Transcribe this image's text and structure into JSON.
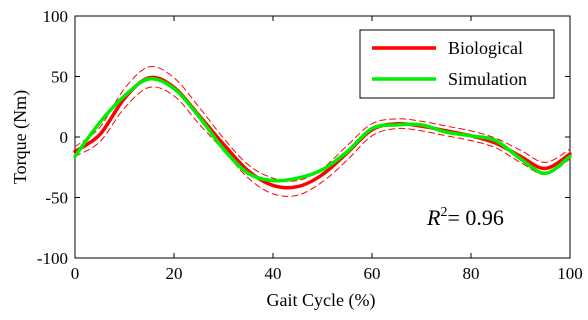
{
  "chart_data": {
    "type": "line",
    "xlabel": "Gait Cycle (%)",
    "ylabel": "Torque (Nm)",
    "xlim": [
      0,
      100
    ],
    "ylim": [
      -100,
      100
    ],
    "xticks": [
      0,
      20,
      40,
      60,
      80,
      100
    ],
    "yticks": [
      -100,
      -50,
      0,
      50,
      100
    ],
    "xtick_labels": [
      "0",
      "20",
      "40",
      "60",
      "80",
      "100"
    ],
    "ytick_labels": [
      "-100",
      "-50",
      "0",
      "50",
      "100"
    ],
    "grid": false,
    "legend_position": "top-right",
    "annotation": {
      "prefix": "R",
      "superscript": "2",
      "suffix": "= 0.96"
    },
    "series": [
      {
        "name": "Biological",
        "color": "#ff0000",
        "x": [
          0,
          5,
          10,
          15,
          20,
          25,
          30,
          35,
          40,
          45,
          50,
          55,
          60,
          65,
          70,
          75,
          80,
          85,
          90,
          95,
          100
        ],
        "y": [
          -12,
          2,
          32,
          49,
          41,
          18,
          -6,
          -28,
          -40,
          -41,
          -31,
          -13,
          6,
          11,
          9,
          5,
          1,
          -5,
          -16,
          -26,
          -14
        ]
      },
      {
        "name": "Simulation",
        "color": "#00ee00",
        "x": [
          0,
          5,
          10,
          15,
          20,
          25,
          30,
          35,
          40,
          45,
          50,
          55,
          60,
          65,
          70,
          75,
          80,
          85,
          90,
          95,
          100
        ],
        "y": [
          -16,
          12,
          34,
          48,
          40,
          17,
          -10,
          -30,
          -36,
          -34,
          -27,
          -12,
          7,
          10,
          10,
          4,
          1,
          -3,
          -18,
          -30,
          -16
        ]
      },
      {
        "name": "",
        "color": "#ff0000",
        "dashed": true,
        "x": [
          0,
          5,
          10,
          15,
          20,
          25,
          30,
          35,
          40,
          45,
          50,
          55,
          60,
          65,
          70,
          75,
          80,
          85,
          90,
          95,
          100
        ],
        "y": [
          -8,
          8,
          40,
          58,
          49,
          25,
          -1,
          -23,
          -34,
          -36,
          -26,
          -7,
          11,
          15,
          13,
          9,
          5,
          -1,
          -11,
          -21,
          -10
        ]
      },
      {
        "name": "",
        "color": "#ff0000",
        "dashed": true,
        "x": [
          0,
          5,
          10,
          15,
          20,
          25,
          30,
          35,
          40,
          45,
          50,
          55,
          60,
          65,
          70,
          75,
          80,
          85,
          90,
          95,
          100
        ],
        "y": [
          -16,
          -4,
          24,
          41,
          34,
          11,
          -11,
          -34,
          -47,
          -48,
          -37,
          -19,
          1,
          7,
          5,
          1,
          -3,
          -9,
          -21,
          -31,
          -18
        ]
      }
    ]
  }
}
